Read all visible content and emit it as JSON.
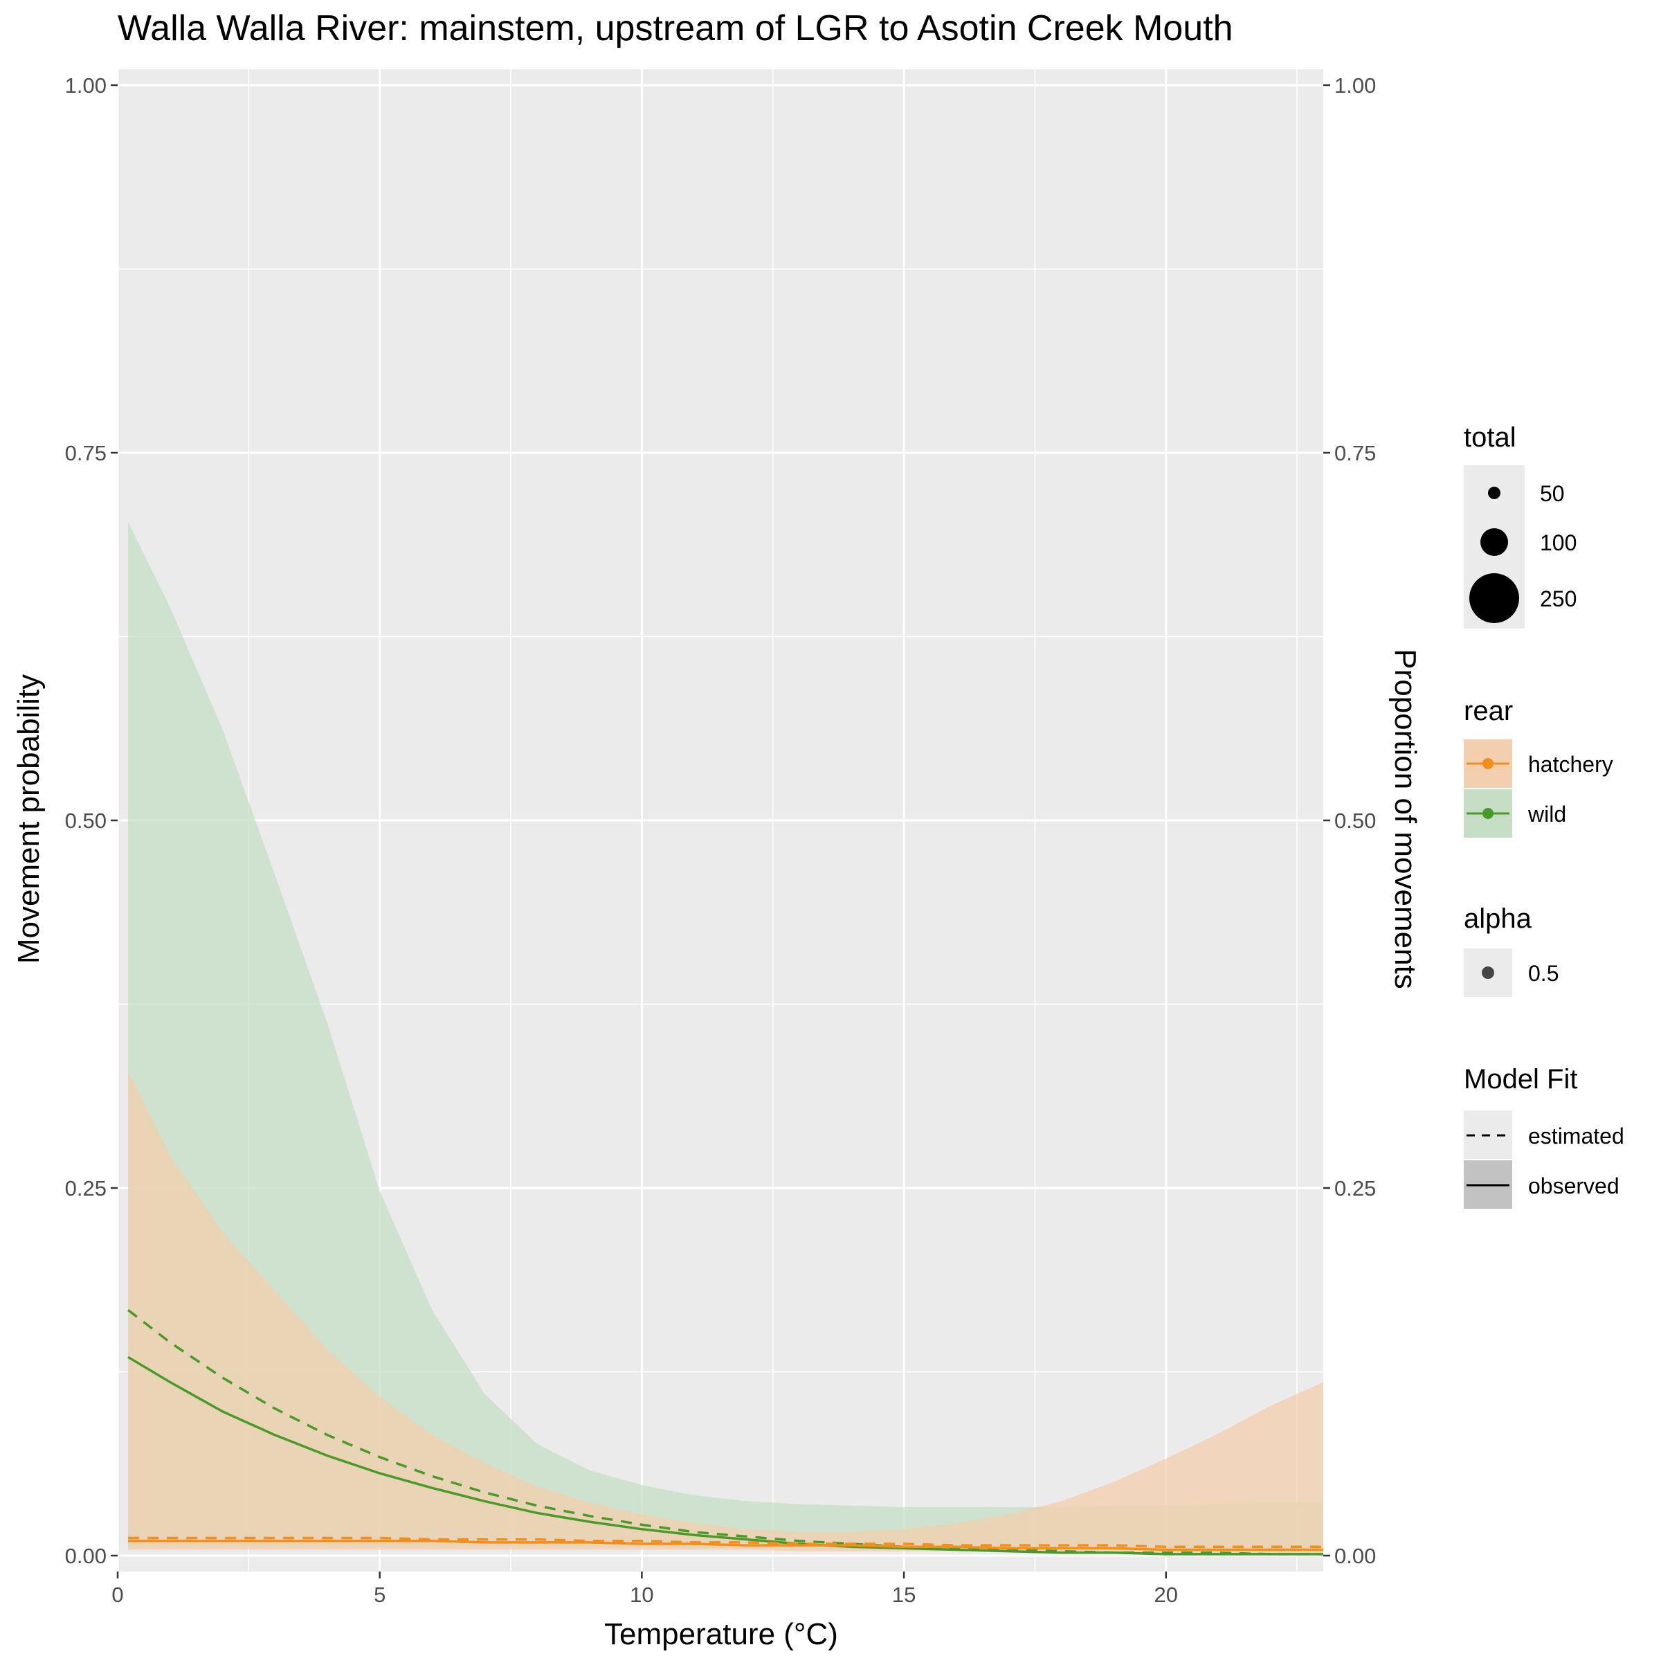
{
  "chart_data": {
    "type": "line",
    "title": "Walla Walla River: mainstem, upstream of LGR to Asotin Creek Mouth",
    "xlabel": "Temperature (°C)",
    "ylabel": "Movement probability",
    "ylabel_right": "Proportion of movements",
    "xlim": [
      0,
      23
    ],
    "ylim": [
      0,
      1
    ],
    "x_ticks": [
      0,
      5,
      10,
      15,
      20
    ],
    "x_tick_labels": [
      "0",
      "5",
      "10",
      "15",
      "20"
    ],
    "y_ticks": [
      0,
      0.25,
      0.5,
      0.75,
      1.0
    ],
    "y_tick_labels": [
      "0.00",
      "0.25",
      "0.50",
      "0.75",
      "1.00"
    ],
    "grid": true,
    "legend_placement": "right",
    "colors": {
      "hatchery": "#F28E1C",
      "hatchery_fill": "#F3CFAE",
      "wild": "#4A9A2A",
      "wild_fill": "#C5DEC5",
      "panel": "#EBEBEB",
      "grid": "#FFFFFF"
    },
    "x": [
      0.2,
      1,
      2,
      3,
      4,
      5,
      6,
      7,
      8,
      9,
      10,
      11,
      12,
      13,
      14,
      15,
      16,
      17,
      18,
      19,
      20,
      21,
      22,
      23
    ],
    "series": [
      {
        "key": "wild",
        "line_type": "estimated",
        "values": [
          0.167,
          0.145,
          0.121,
          0.1,
          0.082,
          0.067,
          0.054,
          0.043,
          0.034,
          0.027,
          0.021,
          0.016,
          0.013,
          0.01,
          0.008,
          0.006,
          0.005,
          0.004,
          0.003,
          0.002,
          0.002,
          0.002,
          0.001,
          0.001
        ]
      },
      {
        "key": "wild",
        "line_type": "observed",
        "values": [
          0.135,
          0.118,
          0.098,
          0.082,
          0.068,
          0.056,
          0.046,
          0.037,
          0.029,
          0.023,
          0.018,
          0.014,
          0.011,
          0.008,
          0.006,
          0.005,
          0.004,
          0.003,
          0.002,
          0.002,
          0.001,
          0.001,
          0.001,
          0.001
        ],
        "band_lower": [
          0.006,
          0.006,
          0.006,
          0.006,
          0.006,
          0.006,
          0.006,
          0.006,
          0.006,
          0.006,
          0.006,
          0.005,
          0.005,
          0.005,
          0.004,
          0.004,
          0.003,
          0.003,
          0.002,
          0.002,
          0.002,
          0.001,
          0.001,
          0.001
        ],
        "band_upper": [
          0.703,
          0.645,
          0.562,
          0.463,
          0.362,
          0.248,
          0.167,
          0.11,
          0.076,
          0.058,
          0.048,
          0.041,
          0.037,
          0.035,
          0.034,
          0.033,
          0.033,
          0.033,
          0.033,
          0.034,
          0.034,
          0.035,
          0.036,
          0.036
        ]
      },
      {
        "key": "hatchery",
        "line_type": "estimated",
        "values": [
          0.012,
          0.012,
          0.012,
          0.012,
          0.012,
          0.012,
          0.011,
          0.011,
          0.011,
          0.01,
          0.01,
          0.009,
          0.009,
          0.008,
          0.008,
          0.008,
          0.007,
          0.007,
          0.007,
          0.007,
          0.006,
          0.006,
          0.006,
          0.006
        ]
      },
      {
        "key": "hatchery",
        "line_type": "observed",
        "values": [
          0.01,
          0.01,
          0.01,
          0.01,
          0.01,
          0.01,
          0.01,
          0.009,
          0.009,
          0.009,
          0.008,
          0.008,
          0.007,
          0.007,
          0.007,
          0.006,
          0.006,
          0.005,
          0.005,
          0.005,
          0.004,
          0.004,
          0.004,
          0.004
        ],
        "band_lower": [
          0.004,
          0.004,
          0.004,
          0.004,
          0.004,
          0.004,
          0.004,
          0.004,
          0.004,
          0.004,
          0.004,
          0.004,
          0.004,
          0.003,
          0.003,
          0.003,
          0.003,
          0.002,
          0.002,
          0.002,
          0.002,
          0.002,
          0.001,
          0.001
        ],
        "band_upper": [
          0.33,
          0.272,
          0.22,
          0.18,
          0.14,
          0.108,
          0.082,
          0.063,
          0.047,
          0.036,
          0.028,
          0.022,
          0.018,
          0.016,
          0.016,
          0.018,
          0.022,
          0.028,
          0.037,
          0.05,
          0.066,
          0.083,
          0.102,
          0.118
        ]
      }
    ],
    "legends": {
      "total": {
        "title": "total",
        "items": [
          "50",
          "100",
          "250"
        ]
      },
      "rear": {
        "title": "rear",
        "items": [
          "hatchery",
          "wild"
        ]
      },
      "alpha": {
        "title": "alpha",
        "items": [
          "0.5"
        ]
      },
      "model_fit": {
        "title": "Model Fit",
        "items": [
          "estimated",
          "observed"
        ]
      }
    }
  }
}
